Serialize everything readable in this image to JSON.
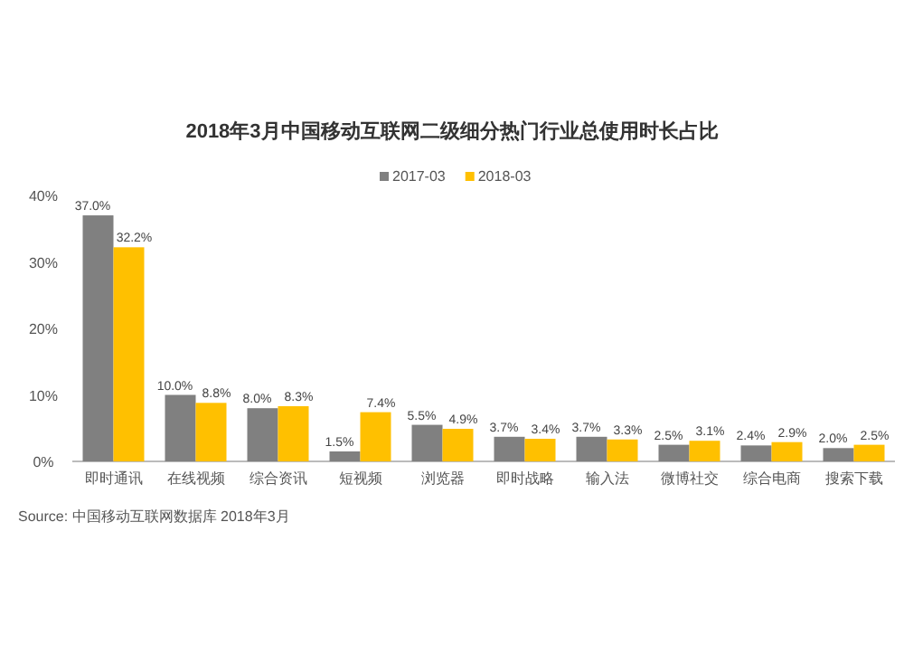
{
  "chart_data": {
    "type": "bar",
    "title": "2018年3月中国移动互联网二级细分热门行业总使用时长占比",
    "categories": [
      "即时通讯",
      "在线视频",
      "综合资讯",
      "短视频",
      "浏览器",
      "即时战略",
      "输入法",
      "微博社交",
      "综合电商",
      "搜索下载"
    ],
    "series": [
      {
        "name": "2017-03",
        "color": "#808080",
        "values": [
          37.0,
          10.0,
          8.0,
          1.5,
          5.5,
          3.7,
          3.7,
          2.5,
          2.4,
          2.0
        ],
        "value_labels": [
          "37.0%",
          "10.0%",
          "8.0%",
          "1.5%",
          "5.5%",
          "3.7%",
          "3.7%",
          "2.5%",
          "2.4%",
          "2.0%"
        ]
      },
      {
        "name": "2018-03",
        "color": "#ffc000",
        "values": [
          32.2,
          8.8,
          8.3,
          7.4,
          4.9,
          3.4,
          3.3,
          3.1,
          2.9,
          2.5
        ],
        "value_labels": [
          "32.2%",
          "8.8%",
          "8.3%",
          "7.4%",
          "4.9%",
          "3.4%",
          "3.3%",
          "3.1%",
          "2.9%",
          "2.5%"
        ]
      }
    ],
    "ylim": [
      0,
      40
    ],
    "yticks": [
      {
        "value": 0,
        "label": "0%"
      },
      {
        "value": 10,
        "label": "10%"
      },
      {
        "value": 20,
        "label": "20%"
      },
      {
        "value": 30,
        "label": "30%"
      },
      {
        "value": 40,
        "label": "40%"
      }
    ],
    "grid": false,
    "legend": "top right",
    "annotations": [
      "Source: 中国移动互联网数据库 2018年3月"
    ]
  }
}
